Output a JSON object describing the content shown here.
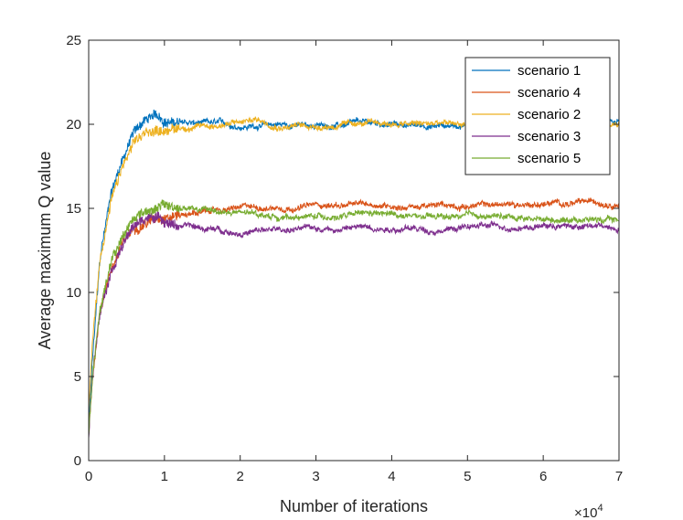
{
  "chart_data": {
    "type": "line",
    "title": "",
    "xlabel": "Number of iterations",
    "ylabel": "Average maximum Q value",
    "x_multiplier_label": "×10",
    "x_multiplier_exponent": "4",
    "xlim": [
      0,
      7
    ],
    "ylim": [
      0,
      25
    ],
    "x_ticks": [
      "0",
      "1",
      "2",
      "3",
      "4",
      "5",
      "6",
      "7"
    ],
    "y_ticks": [
      "0",
      "5",
      "10",
      "15",
      "20",
      "25"
    ],
    "grid": false,
    "legend_position": "top-right",
    "series": [
      {
        "name": "scenario 1",
        "color": "#0072BD",
        "x": [
          0,
          0.05,
          0.15,
          0.3,
          0.45,
          0.6,
          0.75,
          0.9,
          1.0,
          1.2,
          1.5,
          2.0,
          2.5,
          3.0,
          3.5,
          4.0,
          4.5,
          5.0,
          5.5,
          6.0,
          6.5,
          7.0
        ],
        "y": [
          2,
          6,
          12,
          16,
          18,
          19.6,
          20.3,
          20.5,
          20.2,
          20.1,
          20.0,
          19.9,
          20.0,
          19.9,
          20.0,
          20.0,
          19.9,
          20.0,
          20.0,
          20.0,
          20.0,
          20.0
        ]
      },
      {
        "name": "scenario 4",
        "color": "#D95319",
        "x": [
          0,
          0.05,
          0.15,
          0.3,
          0.45,
          0.6,
          0.75,
          0.9,
          1.0,
          1.2,
          1.5,
          2.0,
          2.5,
          3.0,
          3.5,
          4.0,
          4.5,
          5.0,
          5.5,
          6.0,
          6.5,
          7.0
        ],
        "y": [
          1.5,
          5,
          9,
          11.5,
          13,
          13.8,
          14.2,
          14.5,
          14.6,
          14.7,
          14.8,
          15.0,
          15.1,
          15.2,
          15.2,
          15.2,
          15.1,
          15.2,
          15.2,
          15.3,
          15.3,
          15.4
        ]
      },
      {
        "name": "scenario 2",
        "color": "#EDB120",
        "x": [
          0,
          0.05,
          0.15,
          0.3,
          0.45,
          0.6,
          0.75,
          0.9,
          1.0,
          1.2,
          1.5,
          2.0,
          2.2,
          2.5,
          3.0,
          3.5,
          4.0,
          4.5,
          5.0,
          5.5,
          6.0,
          6.5,
          7.0
        ],
        "y": [
          3,
          7,
          12,
          15.5,
          17.5,
          18.8,
          19.4,
          19.6,
          19.7,
          19.8,
          19.9,
          20.1,
          20.3,
          20.0,
          19.9,
          20.0,
          20.0,
          20.0,
          20.0,
          20.0,
          20.0,
          20.0,
          20.0
        ]
      },
      {
        "name": "scenario 3",
        "color": "#7E2F8E",
        "x": [
          0,
          0.05,
          0.15,
          0.3,
          0.45,
          0.6,
          0.75,
          0.9,
          1.0,
          1.2,
          1.5,
          2.0,
          2.5,
          3.0,
          3.5,
          4.0,
          4.5,
          5.0,
          5.5,
          6.0,
          6.5,
          7.0
        ],
        "y": [
          1.5,
          5,
          9,
          11.5,
          13,
          14,
          14.4,
          14.5,
          14.3,
          14.0,
          13.8,
          13.6,
          13.7,
          13.8,
          13.9,
          13.9,
          13.7,
          13.9,
          13.9,
          14.0,
          13.9,
          13.9
        ]
      },
      {
        "name": "scenario 5",
        "color": "#77AC30",
        "x": [
          0,
          0.05,
          0.15,
          0.3,
          0.45,
          0.6,
          0.75,
          0.9,
          1.0,
          1.2,
          1.5,
          2.0,
          2.5,
          3.0,
          3.5,
          4.0,
          4.5,
          5.0,
          5.5,
          6.0,
          6.5,
          7.0
        ],
        "y": [
          1.5,
          5,
          9,
          12,
          13.5,
          14.5,
          14.9,
          15.1,
          15.2,
          15.0,
          14.9,
          14.7,
          14.5,
          14.5,
          14.6,
          14.6,
          14.4,
          14.5,
          14.5,
          14.4,
          14.4,
          14.3
        ]
      }
    ]
  }
}
